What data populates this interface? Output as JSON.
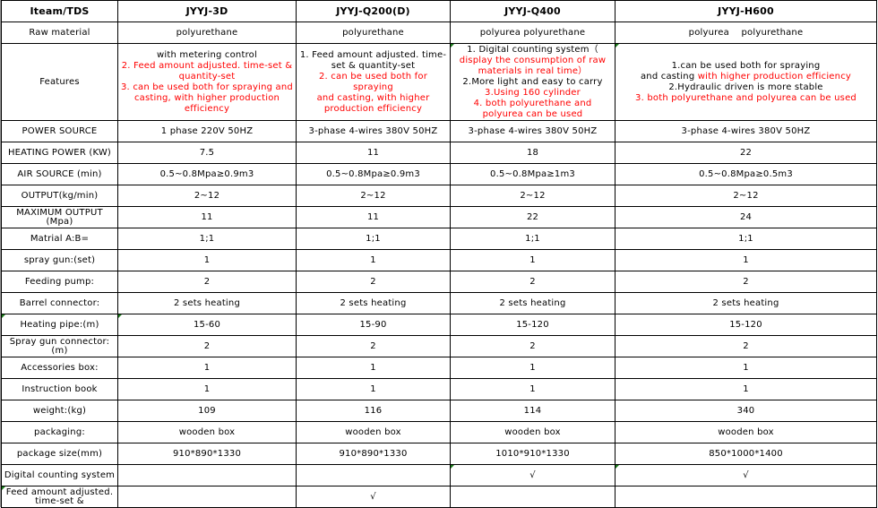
{
  "header": {
    "label": "Iteam/TDS",
    "models": [
      "JYYJ-3D",
      "JYYJ-Q200(D)",
      "JYYJ-Q400",
      "JYYJ-H600"
    ]
  },
  "raw_material": {
    "label": "Raw material",
    "values": [
      "polyurethane",
      "polyurethane",
      "polyurea polyurethane",
      "polyurea　 polyurethane"
    ]
  },
  "features": {
    "label": "Features",
    "c1": [
      {
        "t": "with metering control",
        "red": false
      },
      {
        "t": "2. Feed amount adjusted.  time-set & quantity-set",
        "red": true
      },
      {
        "t": "3. can be used both for spraying and casting, with higher production efficiency",
        "red": true
      }
    ],
    "c2": [
      {
        "t": "1. Feed amount adjusted. time-set & quantity-set",
        "red": false
      },
      {
        "t": "2. can be used both for spraying",
        "red": true
      },
      {
        "t": "and casting, with higher production efficiency",
        "red": true
      }
    ],
    "c3": [
      {
        "t": "1. Digital counting system（",
        "red": false
      },
      {
        "t": "display the consumption of raw materials in real time）",
        "red": true
      },
      {
        "t": "2.More light and easy to carry",
        "red": false
      },
      {
        "t": "3.Using 160 cylinder",
        "red": true
      },
      {
        "t": "4.  both polyurethane and polyurea can be used",
        "red": true
      }
    ],
    "c4a": "1.can be used both for spraying",
    "c4b": "and casting ",
    "c4c": "with higher production efficiency",
    "c4d": "2.Hydraulic driven is more stable",
    "c4e": "3.  both polyurethane and polyurea can be used"
  },
  "rows": [
    {
      "label": "POWER SOURCE",
      "values": [
        "1 phase 220V 50HZ",
        "3-phase 4-wires 380V 50HZ",
        "3-phase 4-wires 380V 50HZ",
        "3-phase 4-wires 380V 50HZ"
      ]
    },
    {
      "label": "HEATING POWER (KW)",
      "values": [
        "7.5",
        "11",
        "18",
        "22"
      ]
    },
    {
      "label": "AIR SOURCE (min)",
      "values": [
        "0.5~0.8Mpa≥0.9m3",
        "0.5~0.8Mpa≥0.9m3",
        "0.5~0.8Mpa≥1m3",
        "0.5~0.8Mpa≥0.5m3"
      ]
    },
    {
      "label": "OUTPUT(kg/min)",
      "values": [
        "2~12",
        "2~12",
        "2~12",
        "2~12"
      ]
    },
    {
      "label": "MAXIMUM OUTPUT (Mpa)",
      "values": [
        "11",
        "11",
        "22",
        "24"
      ]
    },
    {
      "label": "Matrial A:B=",
      "values": [
        "1;1",
        "1;1",
        "1;1",
        "1;1"
      ]
    },
    {
      "label": "spray gun:(set)",
      "values": [
        "1",
        "1",
        "1",
        "1"
      ]
    },
    {
      "label": "Feeding pump:",
      "values": [
        "2",
        "2",
        "2",
        "2"
      ]
    },
    {
      "label": "Barrel connector:",
      "values": [
        "2 sets heating",
        "2 sets heating",
        "2 sets heating",
        "2 sets heating"
      ]
    },
    {
      "label": "Heating pipe:(m)",
      "values": [
        "15-60",
        "15-90",
        "15-120",
        "15-120"
      ]
    },
    {
      "label": "Spray gun connector:(m)",
      "values": [
        "2",
        "2",
        "2",
        "2"
      ]
    },
    {
      "label": "Accessories box:",
      "values": [
        "1",
        "1",
        "1",
        "1"
      ]
    },
    {
      "label": "Instruction book",
      "values": [
        "1",
        "1",
        "1",
        "1"
      ]
    },
    {
      "label": "weight:(kg)",
      "values": [
        "109",
        "116",
        "114",
        "340"
      ]
    },
    {
      "label": "packaging:",
      "values": [
        "wooden box",
        "wooden box",
        "wooden box",
        "wooden box"
      ]
    },
    {
      "label": "package size(mm)",
      "values": [
        "910*890*1330",
        "910*890*1330",
        "1010*910*1330",
        "850*1000*1400"
      ]
    },
    {
      "label": "Digital counting system",
      "values": [
        "",
        "",
        "√",
        "√"
      ]
    },
    {
      "label": "Feed amount adjusted.  time-set &",
      "values": [
        "",
        "√",
        "",
        ""
      ]
    }
  ],
  "colors": {
    "accent_red": "#ff0000",
    "comment_marker": "#1a7a1a"
  }
}
